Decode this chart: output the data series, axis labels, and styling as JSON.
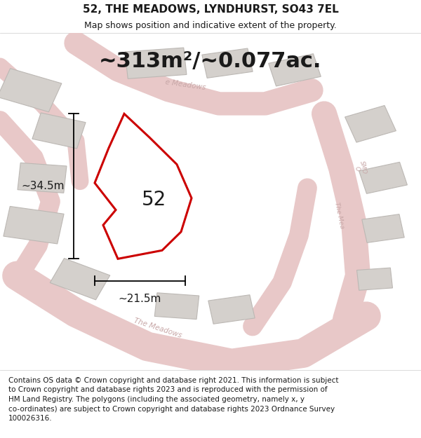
{
  "title": "52, THE MEADOWS, LYNDHURST, SO43 7EL",
  "subtitle": "Map shows position and indicative extent of the property.",
  "area_text": "~313m²/~0.077ac.",
  "label_52": "52",
  "dim_width": "~21.5m",
  "dim_height": "~34.5m",
  "footer_lines": [
    "Contains OS data © Crown copyright and database right 2021. This information is subject",
    "to Crown copyright and database rights 2023 and is reproduced with the permission of",
    "HM Land Registry. The polygons (including the associated geometry, namely x, y",
    "co-ordinates) are subject to Crown copyright and database rights 2023 Ordnance Survey",
    "100026316."
  ],
  "map_bg": "#f0eeea",
  "plot_color": "#ffffff",
  "plot_edge_color": "#cc0000",
  "road_color": "#e8c8c8",
  "building_color": "#d4d0cc",
  "building_edge": "#bcb8b4",
  "title_fontsize": 11,
  "subtitle_fontsize": 9,
  "area_fontsize": 22,
  "label_fontsize": 20,
  "dim_fontsize": 11,
  "footer_fontsize": 7.5
}
